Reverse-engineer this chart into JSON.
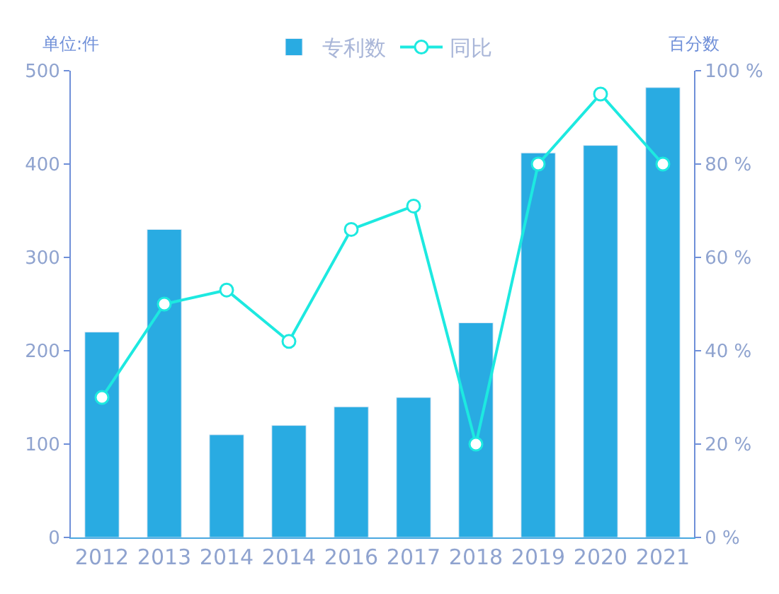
{
  "chart_data": {
    "type": "bar",
    "ylabel": "单位:件",
    "y2label": "百分数",
    "categories": [
      "2012",
      "2013",
      "2014",
      "2014",
      "2016",
      "2017",
      "2018",
      "2019",
      "2020",
      "2021"
    ],
    "series": [
      {
        "name": "专利数",
        "color": "#29abe2",
        "values": [
          220,
          330,
          110,
          120,
          140,
          150,
          230,
          412,
          420,
          482
        ]
      },
      {
        "name": "同比",
        "type": "line",
        "axis": "y2",
        "color": "#1de9e0",
        "values": [
          30,
          50,
          53,
          42,
          66,
          71,
          20,
          80,
          95,
          80
        ]
      }
    ],
    "ylim": [
      0,
      500
    ],
    "yticks": [
      0,
      100,
      200,
      300,
      400,
      500
    ],
    "y2lim": [
      0,
      100
    ],
    "y2ticks": [
      {
        "value": 0,
        "label": "0 %"
      },
      {
        "value": 20,
        "label": "20 %"
      },
      {
        "value": 40,
        "label": "40 %"
      },
      {
        "value": 60,
        "label": "60 %"
      },
      {
        "value": 80,
        "label": "80 %"
      },
      {
        "value": 100,
        "label": "100 %"
      }
    ],
    "legend": "top",
    "marker": "circle",
    "line_style": "solid"
  }
}
